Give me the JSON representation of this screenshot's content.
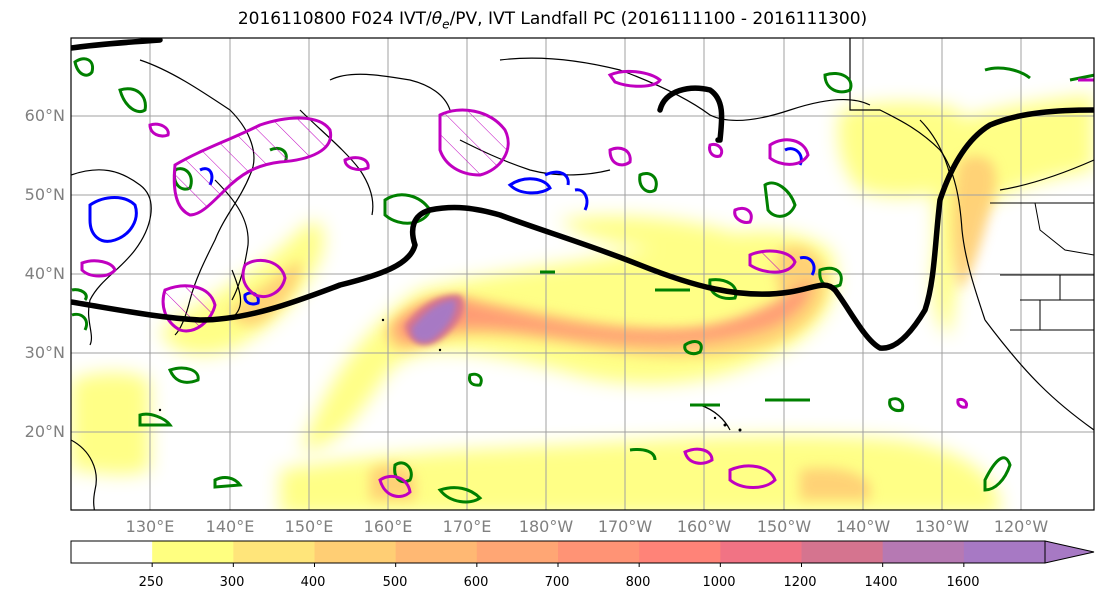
{
  "title": {
    "prefix": "2016110800 F024 IVT/",
    "theta": "θ",
    "theta_sub": "e",
    "suffix": "/PV, IVT Landfall PC (2016111100 - 2016111300)"
  },
  "lat_labels": [
    "60°N",
    "50°N",
    "40°N",
    "30°N",
    "20°N"
  ],
  "lon_labels": [
    "130°E",
    "140°E",
    "150°E",
    "160°E",
    "170°E",
    "180°W",
    "170°W",
    "160°W",
    "150°W",
    "140°W",
    "130°W",
    "120°W"
  ],
  "colorbar": {
    "ticks": [
      "250",
      "300",
      "400",
      "500",
      "600",
      "700",
      "800",
      "1000",
      "1200",
      "1400",
      "1600"
    ],
    "colors": [
      "#ffffff",
      "#ffff80",
      "#ffe57a",
      "#ffce74",
      "#ffb873",
      "#ffa674",
      "#ff9375",
      "#ff8378",
      "#f17384",
      "#d5748f",
      "#b679b3",
      "#a779c4"
    ],
    "extend": "max"
  },
  "colors": {
    "ivt_landfall_pc": "#000000",
    "pv_contour": "#c000c0",
    "theta_e_contour": "#0000ff",
    "green_contour": "#008000",
    "coastline": "#000000",
    "grid": "#a0a0a0"
  }
}
